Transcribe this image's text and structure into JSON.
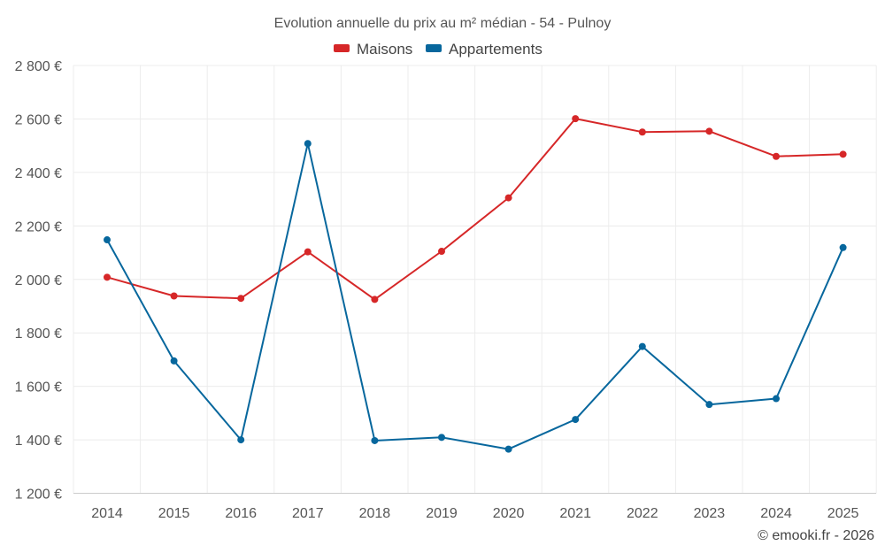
{
  "chart_data": {
    "type": "line",
    "title": "Evolution annuelle du prix au m² médian - 54 - Pulnoy",
    "categories": [
      "2014",
      "2015",
      "2016",
      "2017",
      "2018",
      "2019",
      "2020",
      "2021",
      "2022",
      "2023",
      "2024",
      "2025"
    ],
    "series": [
      {
        "name": "Maisons",
        "color": "#d62728",
        "values": [
          2008,
          1938,
          1929,
          2103,
          1925,
          2105,
          2305,
          2601,
          2551,
          2554,
          2460,
          2468
        ]
      },
      {
        "name": "Appartements",
        "color": "#07679d",
        "values": [
          2148,
          1695,
          1400,
          2508,
          1397,
          1409,
          1365,
          1476,
          1749,
          1532,
          1554,
          2119
        ]
      }
    ],
    "y_ticks": [
      1200,
      1400,
      1600,
      1800,
      2000,
      2200,
      2400,
      2600,
      2800
    ],
    "y_tick_labels": [
      "1 200 €",
      "1 400 €",
      "1 600 €",
      "1 800 €",
      "2 000 €",
      "2 200 €",
      "2 400 €",
      "2 600 €",
      "2 800 €"
    ],
    "ylim": [
      1200,
      2800
    ],
    "xlabel": "",
    "ylabel": "",
    "legend_position": "top-center",
    "grid": true
  },
  "credit": "© emooki.fr - 2026"
}
